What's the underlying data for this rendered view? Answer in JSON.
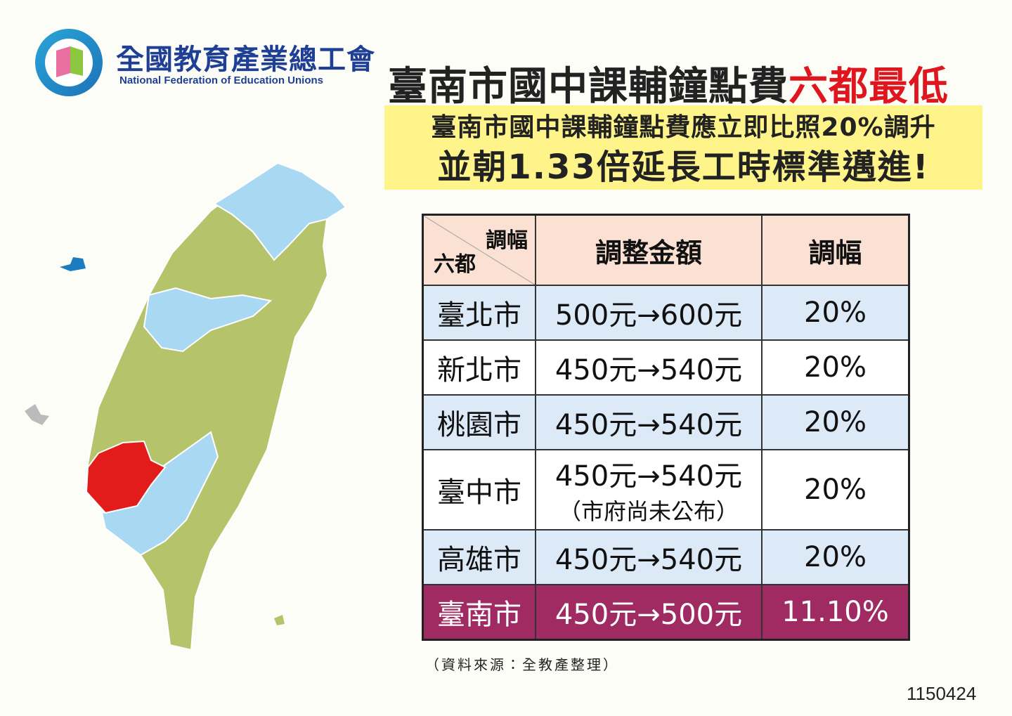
{
  "header": {
    "org_name": "全國教育產業總工會",
    "org_name_en": "National Federation of Education Unions",
    "title": "臺南市國中課輔鐘點費",
    "title_highlight": "六都最低",
    "subtitle_lines": [
      "臺南市國中課輔鐘點費應立即比照20%調升",
      "並朝1.33倍延長工時標準邁進!"
    ]
  },
  "table": {
    "corner_top": "調幅",
    "corner_bottom": "六都",
    "columns": [
      "調整金額",
      "調幅"
    ],
    "rows": [
      {
        "city": "臺北市",
        "amount": "500元→600元",
        "rate": "20%"
      },
      {
        "city": "新北市",
        "amount": "450元→540元",
        "rate": "20%"
      },
      {
        "city": "桃園市",
        "amount": "450元→540元",
        "rate": "20%"
      },
      {
        "city": "臺中市",
        "amount": "450元→540元",
        "note": "（市府尚未公布）",
        "rate": "20%"
      },
      {
        "city": "高雄市",
        "amount": "450元→540元",
        "rate": "20%"
      },
      {
        "city": "臺南市",
        "amount": "450元→500元",
        "rate": "11.10%"
      }
    ]
  },
  "footer": {
    "source": "（資料來源：全教產整理）",
    "code": "1150424"
  }
}
